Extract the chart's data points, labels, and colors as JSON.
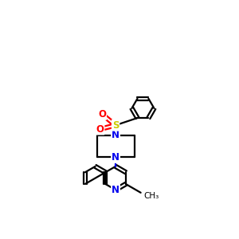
{
  "bg_color": "#ffffff",
  "atom_colors": {
    "N": "#0000ee",
    "S": "#cccc00",
    "O": "#ff0000",
    "C": "#000000"
  },
  "bond_color": "#000000",
  "bond_width": 1.6,
  "figsize": [
    3.0,
    3.0
  ],
  "dpi": 100,
  "xlim": [
    1.0,
    7.0
  ],
  "ylim": [
    0.5,
    9.5
  ]
}
